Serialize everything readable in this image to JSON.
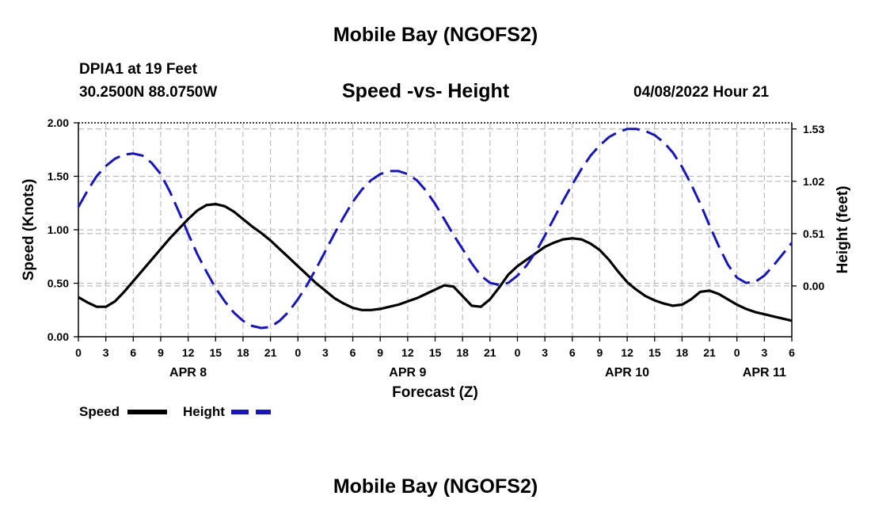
{
  "page": {
    "title_top": "Mobile Bay (NGOFS2)",
    "title_bottom": "Mobile Bay (NGOFS2)",
    "station_line": "DPIA1 at 19 Feet",
    "coords_line": "30.2500N  88.0750W",
    "datetime": "04/08/2022 Hour 21"
  },
  "chart_data": {
    "type": "line",
    "title": "Speed -vs- Height",
    "xlabel": "Forecast (Z)",
    "ylabel_left": "Speed (Knots)",
    "ylabel_right": "Height (feet)",
    "x_unit": "hours since 2022-04-08 00Z",
    "xlim": [
      0,
      78
    ],
    "ylim_left": [
      0,
      2.0
    ],
    "ylim_right": [
      -0.495,
      1.59
    ],
    "grid": true,
    "x_tick_values": [
      0,
      3,
      6,
      9,
      12,
      15,
      18,
      21,
      24,
      27,
      30,
      33,
      36,
      39,
      42,
      45,
      48,
      51,
      54,
      57,
      60,
      63,
      66,
      69,
      72,
      75,
      78
    ],
    "x_tick_labels": [
      "0",
      "3",
      "6",
      "9",
      "12",
      "15",
      "18",
      "21",
      "0",
      "3",
      "6",
      "9",
      "12",
      "15",
      "18",
      "21",
      "0",
      "3",
      "6",
      "9",
      "12",
      "15",
      "18",
      "21",
      "0",
      "3",
      "6"
    ],
    "left_ticks": [
      "0.00",
      "0.50",
      "1.00",
      "1.50",
      "2.00"
    ],
    "left_tick_values": [
      0,
      0.5,
      1.0,
      1.5,
      2.0
    ],
    "right_ticks": [
      "0.00",
      "0.51",
      "1.02",
      "1.53"
    ],
    "right_tick_values": [
      0,
      0.51,
      1.02,
      1.53
    ],
    "date_labels": [
      {
        "label": "APR 8",
        "x": 12
      },
      {
        "label": "APR 9",
        "x": 36
      },
      {
        "label": "APR 10",
        "x": 60
      },
      {
        "label": "APR 11",
        "x": 75
      }
    ],
    "legend": [
      "Speed",
      "Height"
    ],
    "series": [
      {
        "name": "Speed",
        "axis": "left",
        "color": "#000000",
        "style": "solid",
        "x": [
          0,
          1,
          2,
          3,
          4,
          5,
          6,
          7,
          8,
          9,
          10,
          11,
          12,
          13,
          14,
          15,
          16,
          17,
          18,
          19,
          20,
          21,
          22,
          23,
          24,
          25,
          26,
          27,
          28,
          29,
          30,
          31,
          32,
          33,
          34,
          35,
          36,
          37,
          38,
          39,
          40,
          41,
          42,
          43,
          44,
          45,
          46,
          47,
          48,
          49,
          50,
          51,
          52,
          53,
          54,
          55,
          56,
          57,
          58,
          59,
          60,
          61,
          62,
          63,
          64,
          65,
          66,
          67,
          68,
          69,
          70,
          71,
          72,
          73,
          74,
          75,
          76,
          77,
          78
        ],
        "y": [
          0.37,
          0.32,
          0.28,
          0.28,
          0.33,
          0.42,
          0.52,
          0.62,
          0.72,
          0.82,
          0.92,
          1.01,
          1.1,
          1.18,
          1.23,
          1.24,
          1.22,
          1.17,
          1.1,
          1.03,
          0.97,
          0.9,
          0.82,
          0.74,
          0.66,
          0.58,
          0.5,
          0.43,
          0.36,
          0.31,
          0.27,
          0.25,
          0.25,
          0.26,
          0.28,
          0.3,
          0.33,
          0.36,
          0.4,
          0.44,
          0.48,
          0.47,
          0.38,
          0.29,
          0.28,
          0.35,
          0.46,
          0.58,
          0.66,
          0.72,
          0.78,
          0.84,
          0.88,
          0.91,
          0.92,
          0.91,
          0.87,
          0.81,
          0.72,
          0.61,
          0.51,
          0.44,
          0.38,
          0.34,
          0.31,
          0.29,
          0.3,
          0.35,
          0.42,
          0.43,
          0.4,
          0.35,
          0.3,
          0.26,
          0.23,
          0.21,
          0.19,
          0.17,
          0.15
        ]
      },
      {
        "name": "Height",
        "axis": "right",
        "color": "#1515c8",
        "style": "dashed",
        "x": [
          0,
          1,
          2,
          3,
          4,
          5,
          6,
          7,
          8,
          9,
          10,
          11,
          12,
          13,
          14,
          15,
          16,
          17,
          18,
          19,
          20,
          21,
          22,
          23,
          24,
          25,
          26,
          27,
          28,
          29,
          30,
          31,
          32,
          33,
          34,
          35,
          36,
          37,
          38,
          39,
          40,
          41,
          42,
          43,
          44,
          45,
          46,
          47,
          48,
          49,
          50,
          51,
          52,
          53,
          54,
          55,
          56,
          57,
          58,
          59,
          60,
          61,
          62,
          63,
          64,
          65,
          66,
          67,
          68,
          69,
          70,
          71,
          72,
          73,
          74,
          75,
          76,
          77,
          78
        ],
        "y": [
          0.77,
          0.93,
          1.07,
          1.17,
          1.24,
          1.28,
          1.29,
          1.27,
          1.2,
          1.09,
          0.92,
          0.72,
          0.51,
          0.31,
          0.14,
          -0.02,
          -0.15,
          -0.26,
          -0.34,
          -0.39,
          -0.41,
          -0.4,
          -0.34,
          -0.25,
          -0.13,
          0.01,
          0.17,
          0.34,
          0.51,
          0.67,
          0.82,
          0.94,
          1.03,
          1.09,
          1.12,
          1.12,
          1.09,
          1.03,
          0.93,
          0.8,
          0.65,
          0.5,
          0.36,
          0.22,
          0.1,
          0.03,
          0.01,
          0.03,
          0.1,
          0.2,
          0.33,
          0.49,
          0.66,
          0.83,
          0.99,
          1.14,
          1.27,
          1.37,
          1.45,
          1.5,
          1.53,
          1.53,
          1.51,
          1.47,
          1.4,
          1.3,
          1.16,
          0.99,
          0.8,
          0.59,
          0.39,
          0.21,
          0.08,
          0.03,
          0.04,
          0.1,
          0.2,
          0.31,
          0.42
        ]
      }
    ]
  }
}
